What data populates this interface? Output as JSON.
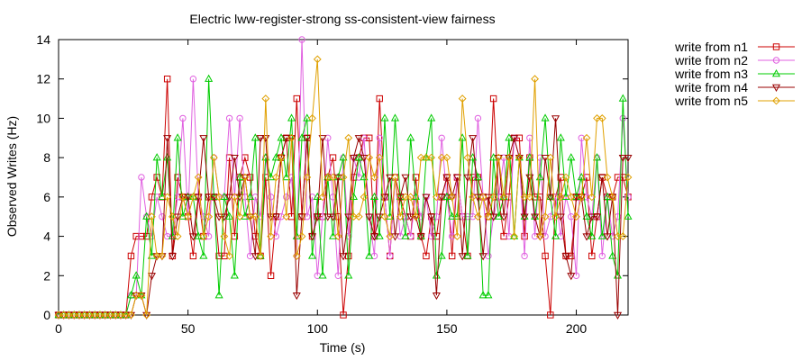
{
  "chart_data": {
    "type": "line",
    "title": "Electric lww-register-strong ss-consistent-view  fairness",
    "xlabel": "Time (s)",
    "ylabel": "Observed Writes (Hz)",
    "xlim": [
      0,
      220
    ],
    "ylim": [
      0,
      14
    ],
    "xticks": [
      0,
      50,
      100,
      150,
      200
    ],
    "yticks": [
      0,
      2,
      4,
      6,
      8,
      10,
      12,
      14
    ],
    "grid": false,
    "legend_position": "outside-right",
    "series": [
      {
        "name": "write from n1",
        "color": "#cc0000",
        "marker": "square",
        "x": [
          0,
          2,
          4,
          6,
          8,
          10,
          12,
          14,
          16,
          18,
          20,
          22,
          24,
          26,
          28,
          30,
          32,
          34,
          36,
          38,
          40,
          42,
          44,
          46,
          48,
          50,
          52,
          54,
          56,
          58,
          60,
          62,
          64,
          66,
          68,
          70,
          72,
          74,
          76,
          78,
          80,
          82,
          84,
          86,
          88,
          90,
          92,
          94,
          96,
          98,
          100,
          102,
          104,
          106,
          108,
          110,
          112,
          114,
          116,
          118,
          120,
          122,
          124,
          126,
          128,
          130,
          132,
          134,
          136,
          138,
          140,
          142,
          144,
          146,
          148,
          150,
          152,
          154,
          156,
          158,
          160,
          162,
          164,
          166,
          168,
          170,
          172,
          174,
          176,
          178,
          180,
          182,
          184,
          186,
          188,
          190,
          192,
          194,
          196,
          198,
          200,
          202,
          204,
          206,
          208,
          210,
          212,
          214,
          216,
          218,
          220
        ],
        "values": [
          0,
          0,
          0,
          0,
          0,
          0,
          0,
          0,
          0,
          0,
          0,
          0,
          0,
          0,
          3,
          4,
          4,
          4,
          6,
          7,
          6,
          12,
          3,
          7,
          6,
          5,
          3,
          6,
          4,
          6,
          6,
          3,
          3,
          8,
          4,
          7,
          8,
          7,
          4,
          3,
          7,
          2,
          5,
          8,
          9,
          5,
          11,
          5,
          9,
          4,
          5,
          5,
          7,
          8,
          5,
          0,
          3,
          7,
          8,
          9,
          9,
          4,
          11,
          6,
          3,
          7,
          6,
          5,
          4,
          7,
          4,
          3,
          5,
          4,
          6,
          7,
          3,
          7,
          5,
          3,
          7,
          7,
          6,
          5,
          11,
          6,
          4,
          6,
          9,
          9,
          4,
          8,
          6,
          6,
          3,
          0,
          6,
          7,
          3,
          3,
          6,
          6,
          7,
          3,
          5,
          7,
          6,
          6,
          7,
          7,
          6
        ]
      },
      {
        "name": "write from n2",
        "color": "#e060e0",
        "marker": "circle",
        "x": [
          0,
          2,
          4,
          6,
          8,
          10,
          12,
          14,
          16,
          18,
          20,
          22,
          24,
          26,
          28,
          30,
          32,
          34,
          36,
          38,
          40,
          42,
          44,
          46,
          48,
          50,
          52,
          54,
          56,
          58,
          60,
          62,
          64,
          66,
          68,
          70,
          72,
          74,
          76,
          78,
          80,
          82,
          84,
          86,
          88,
          90,
          92,
          94,
          96,
          98,
          100,
          102,
          104,
          106,
          108,
          110,
          112,
          114,
          116,
          118,
          120,
          122,
          124,
          126,
          128,
          130,
          132,
          134,
          136,
          138,
          140,
          142,
          144,
          146,
          148,
          150,
          152,
          154,
          156,
          158,
          160,
          162,
          164,
          166,
          168,
          170,
          172,
          174,
          176,
          178,
          180,
          182,
          184,
          186,
          188,
          190,
          192,
          194,
          196,
          198,
          200,
          202,
          204,
          206,
          208,
          210,
          212,
          214,
          216,
          218,
          220
        ],
        "values": [
          0,
          0,
          0,
          0,
          0,
          0,
          0,
          0,
          0,
          0,
          0,
          0,
          0,
          0,
          1,
          1,
          7,
          5,
          4,
          6,
          5,
          4,
          4,
          6,
          10,
          5,
          12,
          6,
          5,
          4,
          8,
          6,
          6,
          10,
          6,
          10,
          6,
          3,
          6,
          5,
          8,
          6,
          4,
          5,
          6,
          7,
          3,
          14,
          5,
          6,
          2,
          5,
          9,
          6,
          2,
          8,
          4,
          8,
          7,
          9,
          5,
          3,
          9,
          6,
          3,
          7,
          4,
          5,
          4,
          6,
          5,
          6,
          4,
          5,
          9,
          6,
          4,
          7,
          5,
          5,
          5,
          10,
          6,
          3,
          5,
          6,
          8,
          4,
          9,
          8,
          3,
          9,
          4,
          8,
          4,
          5,
          6,
          4,
          6,
          5,
          2,
          9,
          6,
          5,
          8,
          3,
          6,
          4,
          5,
          10,
          6
        ]
      },
      {
        "name": "write from n3",
        "color": "#00cc00",
        "marker": "triangle-up",
        "x": [
          0,
          2,
          4,
          6,
          8,
          10,
          12,
          14,
          16,
          18,
          20,
          22,
          24,
          26,
          28,
          30,
          32,
          34,
          36,
          38,
          40,
          42,
          44,
          46,
          48,
          50,
          52,
          54,
          56,
          58,
          60,
          62,
          64,
          66,
          68,
          70,
          72,
          74,
          76,
          78,
          80,
          82,
          84,
          86,
          88,
          90,
          92,
          94,
          96,
          98,
          100,
          102,
          104,
          106,
          108,
          110,
          112,
          114,
          116,
          118,
          120,
          122,
          124,
          126,
          128,
          130,
          132,
          134,
          136,
          138,
          140,
          142,
          144,
          146,
          148,
          150,
          152,
          154,
          156,
          158,
          160,
          162,
          164,
          166,
          168,
          170,
          172,
          174,
          176,
          178,
          180,
          182,
          184,
          186,
          188,
          190,
          192,
          194,
          196,
          198,
          200,
          202,
          204,
          206,
          208,
          210,
          212,
          214,
          216,
          218,
          220
        ],
        "values": [
          0,
          0,
          0,
          0,
          0,
          0,
          0,
          0,
          0,
          0,
          0,
          0,
          0,
          0,
          1,
          2,
          1,
          5,
          3,
          8,
          6,
          8,
          4,
          9,
          5,
          6,
          6,
          4,
          3,
          12,
          6,
          1,
          6,
          5,
          2,
          7,
          5,
          6,
          9,
          3,
          8,
          7,
          8,
          9,
          7,
          10,
          4,
          9,
          10,
          3,
          6,
          2,
          7,
          4,
          7,
          8,
          2,
          6,
          8,
          7,
          3,
          6,
          4,
          10,
          5,
          10,
          6,
          4,
          9,
          6,
          4,
          8,
          10,
          2,
          3,
          6,
          5,
          5,
          9,
          3,
          8,
          7,
          1,
          1,
          8,
          5,
          6,
          9,
          4,
          8,
          5,
          8,
          5,
          7,
          10,
          6,
          4,
          9,
          6,
          8,
          6,
          7,
          5,
          4,
          8,
          4,
          6,
          3,
          2,
          11,
          5
        ]
      },
      {
        "name": "write from n4",
        "color": "#990000",
        "marker": "triangle-down",
        "x": [
          0,
          2,
          4,
          6,
          8,
          10,
          12,
          14,
          16,
          18,
          20,
          22,
          24,
          26,
          28,
          30,
          32,
          34,
          36,
          38,
          40,
          42,
          44,
          46,
          48,
          50,
          52,
          54,
          56,
          58,
          60,
          62,
          64,
          66,
          68,
          70,
          72,
          74,
          76,
          78,
          80,
          82,
          84,
          86,
          88,
          90,
          92,
          94,
          96,
          98,
          100,
          102,
          104,
          106,
          108,
          110,
          112,
          114,
          116,
          118,
          120,
          122,
          124,
          126,
          128,
          130,
          132,
          134,
          136,
          138,
          140,
          142,
          144,
          146,
          148,
          150,
          152,
          154,
          156,
          158,
          160,
          162,
          164,
          166,
          168,
          170,
          172,
          174,
          176,
          178,
          180,
          182,
          184,
          186,
          188,
          190,
          192,
          194,
          196,
          198,
          200,
          202,
          204,
          206,
          208,
          210,
          212,
          214,
          216,
          218,
          220
        ],
        "values": [
          0,
          0,
          0,
          0,
          0,
          0,
          0,
          0,
          0,
          0,
          0,
          0,
          0,
          0,
          0,
          1,
          1,
          0,
          2,
          3,
          3,
          9,
          3,
          5,
          6,
          6,
          4,
          6,
          9,
          6,
          6,
          5,
          5,
          6,
          8,
          6,
          7,
          5,
          3,
          9,
          9,
          5,
          5,
          8,
          9,
          9,
          1,
          5,
          9,
          4,
          5,
          9,
          5,
          5,
          7,
          3,
          5,
          8,
          9,
          8,
          5,
          4,
          5,
          6,
          7,
          4,
          6,
          7,
          5,
          5,
          4,
          6,
          5,
          1,
          6,
          7,
          6,
          7,
          3,
          7,
          9,
          6,
          3,
          6,
          5,
          8,
          5,
          8,
          9,
          8,
          5,
          7,
          5,
          4,
          8,
          6,
          10,
          5,
          3,
          2,
          6,
          6,
          4,
          5,
          5,
          7,
          4,
          6,
          0,
          8,
          8
        ]
      },
      {
        "name": "write from n5",
        "color": "#e0a000",
        "marker": "diamond",
        "x": [
          0,
          2,
          4,
          6,
          8,
          10,
          12,
          14,
          16,
          18,
          20,
          22,
          24,
          26,
          28,
          30,
          32,
          34,
          36,
          38,
          40,
          42,
          44,
          46,
          48,
          50,
          52,
          54,
          56,
          58,
          60,
          62,
          64,
          66,
          68,
          70,
          72,
          74,
          76,
          78,
          80,
          82,
          84,
          86,
          88,
          90,
          92,
          94,
          96,
          98,
          100,
          102,
          104,
          106,
          108,
          110,
          112,
          114,
          116,
          118,
          120,
          122,
          124,
          126,
          128,
          130,
          132,
          134,
          136,
          138,
          140,
          142,
          144,
          146,
          148,
          150,
          152,
          154,
          156,
          158,
          160,
          162,
          164,
          166,
          168,
          170,
          172,
          174,
          176,
          178,
          180,
          182,
          184,
          186,
          188,
          190,
          192,
          194,
          196,
          198,
          200,
          202,
          204,
          206,
          208,
          210,
          212,
          214,
          216,
          218,
          220
        ],
        "values": [
          0,
          0,
          0,
          0,
          0,
          0,
          0,
          0,
          0,
          0,
          0,
          0,
          0,
          0,
          0,
          1,
          1,
          0,
          5,
          3,
          3,
          6,
          5,
          4,
          6,
          5,
          6,
          7,
          4,
          5,
          8,
          6,
          4,
          3,
          6,
          5,
          7,
          5,
          5,
          3,
          11,
          4,
          7,
          8,
          5,
          9,
          3,
          4,
          7,
          10,
          13,
          6,
          7,
          7,
          4,
          7,
          9,
          5,
          5,
          6,
          8,
          7,
          8,
          5,
          4,
          7,
          5,
          6,
          6,
          5,
          8,
          8,
          8,
          6,
          8,
          8,
          6,
          4,
          11,
          8,
          6,
          5,
          6,
          5,
          6,
          8,
          6,
          8,
          4,
          8,
          6,
          6,
          12,
          4,
          5,
          8,
          5,
          6,
          7,
          6,
          5,
          6,
          9,
          6,
          10,
          10,
          7,
          6,
          4,
          4,
          7
        ]
      }
    ]
  }
}
